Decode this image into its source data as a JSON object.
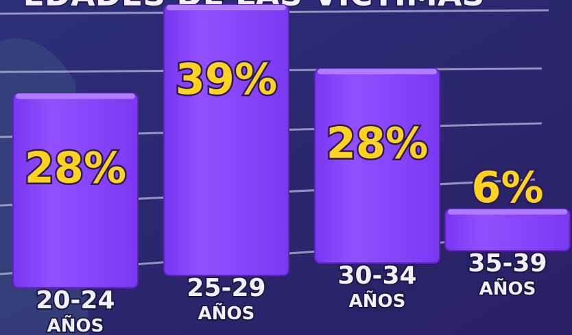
{
  "chart_data": {
    "type": "bar",
    "title": "EDADES DE LAS VÍCTIMAS",
    "categories": [
      "20-24 AÑOS",
      "25-29 AÑOS",
      "30-34 AÑOS",
      "35-39 AÑOS"
    ],
    "values": [
      28,
      39,
      28,
      6
    ],
    "value_labels": [
      "28%",
      "39%",
      "28%",
      "6%"
    ],
    "color": "#8b45ff"
  }
}
